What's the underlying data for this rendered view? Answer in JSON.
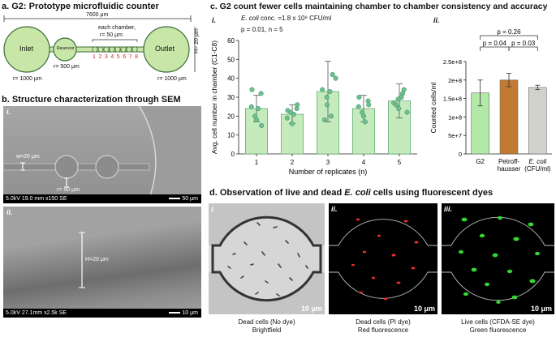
{
  "panel_a": {
    "title": "a. G2: Prototype microfluidic counter",
    "total_length": "7600 μm",
    "inlet_label": "Inlet",
    "reservoir_label": "Reservoir",
    "outlet_label": "Outlet",
    "each_chamber_label": "each chamber,",
    "chamber_radius": "r= 50 μm",
    "chamber_numbers": [
      "1",
      "2",
      "3",
      "4",
      "5",
      "6",
      "7",
      "8"
    ],
    "inlet_radius": "r= 1000 μm",
    "reservoir_radius": "r= 500 μm",
    "outlet_radius": "r= 1000 μm",
    "height_label": "H= 20 μm",
    "colors": {
      "fill": "#c8e6a8",
      "stroke": "#3c6e3c",
      "chamber_numbers": "#d42a2a"
    }
  },
  "panel_b": {
    "title": "b. Structure characterization through SEM",
    "img1": {
      "roman": "i.",
      "width_label": "w=20 μm",
      "radius_label": "r= 50 μm",
      "info": "5.0kV 19.0 mm x150 SE",
      "scale": "50 μm"
    },
    "img2": {
      "roman": "ii.",
      "height_label": "H=20 μm",
      "info": "5.0kV 27.1mm x2.5k SE",
      "scale": "10 μm"
    }
  },
  "panel_c": {
    "title": "c. G2 count fewer cells maintaining chamber to chamber consistency and accuracy",
    "sub_i": "i.",
    "sub_ii": "ii.",
    "conc_italic": "E. coli",
    "conc_rest": " conc. =1.8 x 10⁸ CFU/ml",
    "stats": "p = 0.01, n = 5"
  },
  "chart_data": [
    {
      "type": "bar",
      "categories": [
        "1",
        "2",
        "3",
        "4",
        "5"
      ],
      "values": [
        24,
        21,
        33,
        24,
        28
      ],
      "errors": [
        7,
        5,
        16,
        7,
        9
      ],
      "points": [
        [
          32,
          25,
          24,
          18,
          20,
          15,
          34
        ],
        [
          24,
          19,
          21,
          16,
          22,
          26,
          23
        ],
        [
          42,
          34,
          33,
          30,
          26,
          20,
          18,
          40
        ],
        [
          28,
          25,
          17,
          20,
          22,
          26,
          30
        ],
        [
          34,
          27,
          30,
          29,
          24,
          32,
          26,
          22
        ]
      ],
      "xlabel": "Number of replicates (n)",
      "ylabel": "Avg. cell number in chamber (C1-C8)",
      "ylim": [
        0,
        60
      ],
      "yticks": [
        0,
        10,
        20,
        30,
        40,
        50,
        60
      ],
      "colors": {
        "bar": "#c5ebbd",
        "bar_stroke": "#5aa36a",
        "point": "#6ec08f"
      }
    },
    {
      "type": "bar",
      "categories": [
        "G2",
        "Petroff-\nhausser",
        "E. coli\n(CFU/ml)"
      ],
      "values": [
        165000000,
        200000000,
        180000000
      ],
      "errors": [
        35000000,
        18000000,
        6000000
      ],
      "ylabel": "Counted cells/ml",
      "ylim": [
        0,
        250000000
      ],
      "ytick_labels": [
        "0",
        "5e+7",
        "1e+8",
        "1.5e+8",
        "2e+8",
        "2.5e+8"
      ],
      "comparisons": [
        {
          "a": 0,
          "b": 1,
          "label": "p = 0.04"
        },
        {
          "a": 1,
          "b": 2,
          "label": "p = 0.03"
        },
        {
          "a": 0,
          "b": 2,
          "label": "p = 0.26"
        }
      ],
      "colors": [
        "#b2e8a8",
        "#c27a32",
        "#d2d2cc"
      ]
    }
  ],
  "panel_d": {
    "title_pre": "d.  Observation of live and dead ",
    "title_italic": "E. coli",
    "title_post": " cells using fluorescent dyes",
    "images": [
      {
        "roman": "i.",
        "scale": "10 μm",
        "caption1": "Dead cells (No dye)",
        "caption2": "Brightfield"
      },
      {
        "roman": "ii.",
        "scale": "10 μm",
        "caption1": "Dead cells (PI dye)",
        "caption2": "Red fluorescence"
      },
      {
        "roman": "iii.",
        "scale": "10 μm",
        "caption1": "Live cells (CFDA-SE dye)",
        "caption2": "Green fluorescence"
      }
    ]
  }
}
